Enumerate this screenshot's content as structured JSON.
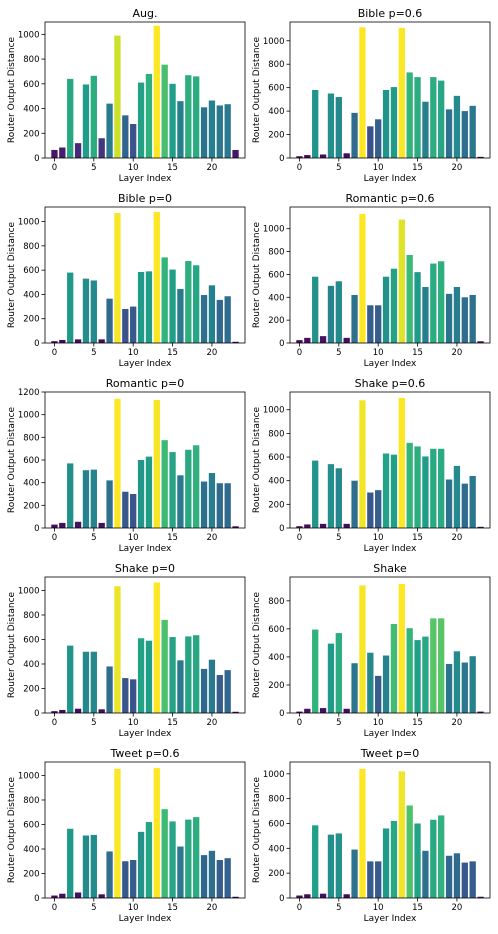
{
  "chart_data": [
    {
      "type": "bar",
      "title": "Aug.",
      "xlabel": "Layer Index",
      "ylabel": "Router Output Distance",
      "x": [
        0,
        1,
        2,
        3,
        4,
        5,
        6,
        7,
        8,
        9,
        10,
        11,
        12,
        13,
        14,
        15,
        16,
        17,
        18,
        19,
        20,
        21,
        22,
        23
      ],
      "values": [
        65,
        85,
        640,
        120,
        595,
        665,
        160,
        440,
        990,
        345,
        275,
        610,
        680,
        1070,
        755,
        600,
        460,
        670,
        660,
        410,
        465,
        425,
        435,
        65
      ],
      "ylim": [
        0,
        1100
      ],
      "yticks": [
        0,
        200,
        400,
        600,
        800,
        1000
      ],
      "xticks": [
        0,
        5,
        10,
        15,
        20
      ]
    },
    {
      "type": "bar",
      "title": "Bible p=0.6",
      "xlabel": "Layer Index",
      "ylabel": "Router Output Distance",
      "x": [
        0,
        1,
        2,
        3,
        4,
        5,
        6,
        7,
        8,
        9,
        10,
        11,
        12,
        13,
        14,
        15,
        16,
        17,
        18,
        19,
        20,
        21,
        22,
        23
      ],
      "values": [
        15,
        25,
        580,
        30,
        550,
        520,
        40,
        385,
        1115,
        270,
        330,
        580,
        605,
        1110,
        730,
        690,
        480,
        690,
        660,
        415,
        530,
        400,
        445,
        10
      ],
      "ylim": [
        0,
        1160
      ],
      "yticks": [
        0,
        200,
        400,
        600,
        800,
        1000
      ],
      "xticks": [
        0,
        5,
        10,
        15,
        20
      ]
    },
    {
      "type": "bar",
      "title": "Bible p=0",
      "xlabel": "Layer Index",
      "ylabel": "Router Output Distance",
      "x": [
        0,
        1,
        2,
        3,
        4,
        5,
        6,
        7,
        8,
        9,
        10,
        11,
        12,
        13,
        14,
        15,
        16,
        17,
        18,
        19,
        20,
        21,
        22,
        23
      ],
      "values": [
        15,
        25,
        580,
        30,
        530,
        515,
        30,
        365,
        1070,
        280,
        300,
        585,
        590,
        1080,
        705,
        605,
        445,
        675,
        640,
        395,
        475,
        355,
        385,
        10
      ],
      "ylim": [
        0,
        1120
      ],
      "yticks": [
        0,
        200,
        400,
        600,
        800,
        1000
      ],
      "xticks": [
        0,
        5,
        10,
        15,
        20
      ]
    },
    {
      "type": "bar",
      "title": "Romantic p=0.6",
      "xlabel": "Layer Index",
      "ylabel": "Router Output Distance",
      "x": [
        0,
        1,
        2,
        3,
        4,
        5,
        6,
        7,
        8,
        9,
        10,
        11,
        12,
        13,
        14,
        15,
        16,
        17,
        18,
        19,
        20,
        21,
        22,
        23
      ],
      "values": [
        25,
        45,
        580,
        60,
        500,
        540,
        45,
        420,
        1130,
        330,
        330,
        580,
        650,
        1080,
        770,
        620,
        490,
        695,
        715,
        430,
        490,
        400,
        420,
        15
      ],
      "ylim": [
        0,
        1190
      ],
      "yticks": [
        0,
        200,
        400,
        600,
        800,
        1000
      ],
      "xticks": [
        0,
        5,
        10,
        15,
        20
      ]
    },
    {
      "type": "bar",
      "title": "Romantic p=0",
      "xlabel": "Layer Index",
      "ylabel": "Router Output Distance",
      "x": [
        0,
        1,
        2,
        3,
        4,
        5,
        6,
        7,
        8,
        9,
        10,
        11,
        12,
        13,
        14,
        15,
        16,
        17,
        18,
        19,
        20,
        21,
        22,
        23
      ],
      "values": [
        30,
        45,
        570,
        55,
        510,
        515,
        45,
        420,
        1140,
        320,
        300,
        600,
        630,
        1130,
        775,
        670,
        465,
        690,
        730,
        410,
        485,
        395,
        395,
        15
      ],
      "ylim": [
        0,
        1200
      ],
      "yticks": [
        0,
        200,
        400,
        600,
        800,
        1000,
        1200
      ],
      "xticks": [
        0,
        5,
        10,
        15,
        20
      ]
    },
    {
      "type": "bar",
      "title": "Shake p=0.6",
      "xlabel": "Layer Index",
      "ylabel": "Router Output Distance",
      "x": [
        0,
        1,
        2,
        3,
        4,
        5,
        6,
        7,
        8,
        9,
        10,
        11,
        12,
        13,
        14,
        15,
        16,
        17,
        18,
        19,
        20,
        21,
        22,
        23
      ],
      "values": [
        15,
        30,
        570,
        35,
        540,
        505,
        35,
        400,
        1080,
        300,
        320,
        630,
        620,
        1100,
        720,
        690,
        605,
        670,
        670,
        410,
        525,
        375,
        440,
        10
      ],
      "ylim": [
        0,
        1150
      ],
      "yticks": [
        0,
        200,
        400,
        600,
        800,
        1000
      ],
      "xticks": [
        0,
        5,
        10,
        15,
        20
      ]
    },
    {
      "type": "bar",
      "title": "Shake p=0",
      "xlabel": "Layer Index",
      "ylabel": "Router Output Distance",
      "x": [
        0,
        1,
        2,
        3,
        4,
        5,
        6,
        7,
        8,
        9,
        10,
        11,
        12,
        13,
        14,
        15,
        16,
        17,
        18,
        19,
        20,
        21,
        22,
        23
      ],
      "values": [
        15,
        25,
        550,
        35,
        500,
        500,
        30,
        380,
        1035,
        285,
        275,
        610,
        590,
        1065,
        760,
        620,
        430,
        625,
        635,
        360,
        435,
        310,
        350,
        10
      ],
      "ylim": [
        0,
        1110
      ],
      "yticks": [
        0,
        200,
        400,
        600,
        800,
        1000
      ],
      "xticks": [
        0,
        5,
        10,
        15,
        20
      ]
    },
    {
      "type": "bar",
      "title": "Shake",
      "xlabel": "Layer Index",
      "ylabel": "Router Output Distance",
      "x": [
        0,
        1,
        2,
        3,
        4,
        5,
        6,
        7,
        8,
        9,
        10,
        11,
        12,
        13,
        14,
        15,
        16,
        17,
        18,
        19,
        20,
        21,
        22,
        23
      ],
      "values": [
        10,
        30,
        595,
        35,
        495,
        570,
        30,
        355,
        910,
        430,
        265,
        410,
        635,
        920,
        605,
        520,
        545,
        675,
        675,
        350,
        440,
        360,
        405,
        10
      ],
      "ylim": [
        0,
        970
      ],
      "yticks": [
        0,
        200,
        400,
        600,
        800
      ],
      "xticks": [
        0,
        5,
        10,
        15,
        20
      ]
    },
    {
      "type": "bar",
      "title": "Tweet p=0.6",
      "xlabel": "Layer Index",
      "ylabel": "Router Output Distance",
      "x": [
        0,
        1,
        2,
        3,
        4,
        5,
        6,
        7,
        8,
        9,
        10,
        11,
        12,
        13,
        14,
        15,
        16,
        17,
        18,
        19,
        20,
        21,
        22,
        23
      ],
      "values": [
        20,
        35,
        565,
        45,
        510,
        515,
        30,
        380,
        1055,
        300,
        310,
        540,
        620,
        1060,
        725,
        625,
        420,
        640,
        660,
        350,
        385,
        310,
        325,
        10
      ],
      "ylim": [
        0,
        1110
      ],
      "yticks": [
        0,
        200,
        400,
        600,
        800,
        1000
      ],
      "xticks": [
        0,
        5,
        10,
        15,
        20
      ]
    },
    {
      "type": "bar",
      "title": "Tweet p=0",
      "xlabel": "Layer Index",
      "ylabel": "Router Output Distance",
      "x": [
        0,
        1,
        2,
        3,
        4,
        5,
        6,
        7,
        8,
        9,
        10,
        11,
        12,
        13,
        14,
        15,
        16,
        17,
        18,
        19,
        20,
        21,
        22,
        23
      ],
      "values": [
        20,
        30,
        585,
        35,
        510,
        520,
        30,
        390,
        1040,
        295,
        295,
        560,
        620,
        1020,
        745,
        600,
        380,
        630,
        665,
        340,
        360,
        285,
        295,
        10
      ],
      "ylim": [
        0,
        1095
      ],
      "yticks": [
        0,
        200,
        400,
        600,
        800,
        1000
      ],
      "xticks": [
        0,
        5,
        10,
        15,
        20
      ]
    }
  ]
}
